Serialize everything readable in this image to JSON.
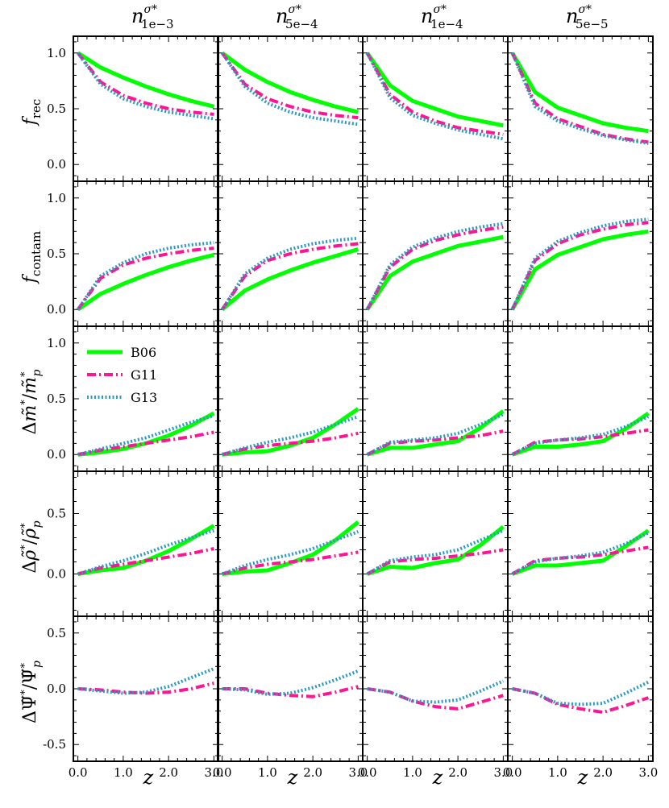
{
  "chart_data": {
    "type": "line",
    "grid": false,
    "x": [
      0.0,
      0.5,
      1.0,
      1.5,
      2.0,
      2.5,
      3.0
    ],
    "xlabel": "z",
    "xticklabels": [
      "0.0",
      "1.0",
      "2.0",
      "3.0"
    ],
    "xlim": [
      -0.1,
      3.1
    ],
    "legend": {
      "placement": "top-left of row 3, column 1",
      "entries": [
        {
          "name": "B06",
          "color": "#00ff00",
          "style": "solid"
        },
        {
          "name": "G11",
          "color": "#ff1493",
          "style": "dashdot"
        },
        {
          "name": "G13",
          "color": "#2b9ac0",
          "style": "dotted"
        }
      ]
    },
    "columns": [
      {
        "title_base": "n",
        "title_super": "σ*",
        "title_sub": "1e−3"
      },
      {
        "title_base": "n",
        "title_super": "σ*",
        "title_sub": "5e−4"
      },
      {
        "title_base": "n",
        "title_super": "σ*",
        "title_sub": "1e−4"
      },
      {
        "title_base": "n",
        "title_super": "σ*",
        "title_sub": "5e−5"
      }
    ],
    "rows": [
      {
        "ylabel": "f_rec",
        "ylim": [
          -0.15,
          1.15
        ],
        "yticks": [
          0.0,
          0.5,
          1.0
        ],
        "yticklabels": [
          "0.0",
          "0.5",
          "1.0"
        ],
        "panels": [
          {
            "series": [
              {
                "name": "B06",
                "values": [
                  1.0,
                  0.87,
                  0.78,
                  0.7,
                  0.63,
                  0.57,
                  0.52
                ]
              },
              {
                "name": "G11",
                "values": [
                  1.0,
                  0.74,
                  0.62,
                  0.55,
                  0.5,
                  0.47,
                  0.45
                ]
              },
              {
                "name": "G13",
                "values": [
                  1.0,
                  0.72,
                  0.59,
                  0.52,
                  0.47,
                  0.44,
                  0.41
                ]
              }
            ]
          },
          {
            "series": [
              {
                "name": "B06",
                "values": [
                  1.0,
                  0.85,
                  0.74,
                  0.65,
                  0.58,
                  0.52,
                  0.47
                ]
              },
              {
                "name": "G11",
                "values": [
                  1.0,
                  0.72,
                  0.59,
                  0.52,
                  0.47,
                  0.44,
                  0.42
                ]
              },
              {
                "name": "G13",
                "values": [
                  1.0,
                  0.7,
                  0.55,
                  0.47,
                  0.42,
                  0.39,
                  0.36
                ]
              }
            ]
          },
          {
            "series": [
              {
                "name": "B06",
                "values": [
                  1.0,
                  0.71,
                  0.57,
                  0.5,
                  0.43,
                  0.39,
                  0.35
                ]
              },
              {
                "name": "G11",
                "values": [
                  1.0,
                  0.63,
                  0.47,
                  0.39,
                  0.33,
                  0.3,
                  0.27
                ]
              },
              {
                "name": "G13",
                "values": [
                  1.0,
                  0.6,
                  0.44,
                  0.37,
                  0.31,
                  0.27,
                  0.23
                ]
              }
            ]
          },
          {
            "series": [
              {
                "name": "B06",
                "values": [
                  1.0,
                  0.65,
                  0.51,
                  0.44,
                  0.37,
                  0.33,
                  0.3
                ]
              },
              {
                "name": "G11",
                "values": [
                  1.0,
                  0.55,
                  0.41,
                  0.34,
                  0.27,
                  0.23,
                  0.2
                ]
              },
              {
                "name": "G13",
                "values": [
                  1.0,
                  0.52,
                  0.39,
                  0.32,
                  0.26,
                  0.22,
                  0.19
                ]
              }
            ]
          }
        ]
      },
      {
        "ylabel": "f_contam",
        "ylim": [
          -0.15,
          1.15
        ],
        "yticks": [
          0.0,
          0.5,
          1.0
        ],
        "yticklabels": [
          "0.0",
          "0.5",
          "1.0"
        ],
        "panels": [
          {
            "series": [
              {
                "name": "B06",
                "values": [
                  0.0,
                  0.14,
                  0.23,
                  0.31,
                  0.38,
                  0.44,
                  0.49
                ]
              },
              {
                "name": "G11",
                "values": [
                  0.0,
                  0.28,
                  0.4,
                  0.46,
                  0.5,
                  0.53,
                  0.55
                ]
              },
              {
                "name": "G13",
                "values": [
                  0.0,
                  0.3,
                  0.42,
                  0.5,
                  0.55,
                  0.58,
                  0.6
                ]
              }
            ]
          },
          {
            "series": [
              {
                "name": "B06",
                "values": [
                  0.0,
                  0.17,
                  0.27,
                  0.35,
                  0.42,
                  0.48,
                  0.54
                ]
              },
              {
                "name": "G11",
                "values": [
                  0.0,
                  0.3,
                  0.44,
                  0.5,
                  0.54,
                  0.57,
                  0.59
                ]
              },
              {
                "name": "G13",
                "values": [
                  0.0,
                  0.32,
                  0.46,
                  0.54,
                  0.59,
                  0.62,
                  0.64
                ]
              }
            ]
          },
          {
            "series": [
              {
                "name": "B06",
                "values": [
                  0.0,
                  0.3,
                  0.43,
                  0.5,
                  0.57,
                  0.61,
                  0.65
                ]
              },
              {
                "name": "G11",
                "values": [
                  0.0,
                  0.38,
                  0.54,
                  0.62,
                  0.67,
                  0.71,
                  0.74
                ]
              },
              {
                "name": "G13",
                "values": [
                  0.0,
                  0.4,
                  0.56,
                  0.64,
                  0.7,
                  0.74,
                  0.77
                ]
              }
            ]
          },
          {
            "series": [
              {
                "name": "B06",
                "values": [
                  0.0,
                  0.36,
                  0.49,
                  0.56,
                  0.63,
                  0.67,
                  0.7
                ]
              },
              {
                "name": "G11",
                "values": [
                  0.0,
                  0.44,
                  0.59,
                  0.67,
                  0.72,
                  0.76,
                  0.78
                ]
              },
              {
                "name": "G13",
                "values": [
                  0.0,
                  0.46,
                  0.61,
                  0.69,
                  0.75,
                  0.79,
                  0.81
                ]
              }
            ]
          }
        ]
      },
      {
        "ylabel": "Δm̃*/m̃*_p",
        "ylim": [
          -0.15,
          1.15
        ],
        "yticks": [
          0.0,
          0.5,
          1.0
        ],
        "yticklabels": [
          "0.0",
          "0.5",
          "1.0"
        ],
        "panels": [
          {
            "series": [
              {
                "name": "B06",
                "values": [
                  0.0,
                  0.02,
                  0.05,
                  0.1,
                  0.17,
                  0.26,
                  0.37
                ]
              },
              {
                "name": "G11",
                "values": [
                  0.0,
                  0.04,
                  0.07,
                  0.1,
                  0.13,
                  0.16,
                  0.2
                ]
              },
              {
                "name": "G13",
                "values": [
                  0.0,
                  0.05,
                  0.1,
                  0.15,
                  0.22,
                  0.29,
                  0.35
                ]
              }
            ]
          },
          {
            "series": [
              {
                "name": "B06",
                "values": [
                  0.0,
                  0.02,
                  0.03,
                  0.08,
                  0.15,
                  0.27,
                  0.41
                ]
              },
              {
                "name": "G11",
                "values": [
                  0.0,
                  0.05,
                  0.08,
                  0.1,
                  0.12,
                  0.15,
                  0.19
                ]
              },
              {
                "name": "G13",
                "values": [
                  0.0,
                  0.06,
                  0.11,
                  0.15,
                  0.2,
                  0.27,
                  0.34
                ]
              }
            ]
          },
          {
            "series": [
              {
                "name": "B06",
                "values": [
                  0.0,
                  0.06,
                  0.06,
                  0.09,
                  0.12,
                  0.24,
                  0.39
                ]
              },
              {
                "name": "G11",
                "values": [
                  0.0,
                  0.1,
                  0.12,
                  0.13,
                  0.15,
                  0.17,
                  0.21
                ]
              },
              {
                "name": "G13",
                "values": [
                  0.0,
                  0.11,
                  0.13,
                  0.15,
                  0.19,
                  0.27,
                  0.36
                ]
              }
            ]
          },
          {
            "series": [
              {
                "name": "B06",
                "values": [
                  0.0,
                  0.07,
                  0.07,
                  0.09,
                  0.12,
                  0.23,
                  0.37
                ]
              },
              {
                "name": "G11",
                "values": [
                  0.0,
                  0.11,
                  0.13,
                  0.14,
                  0.16,
                  0.19,
                  0.22
                ]
              },
              {
                "name": "G13",
                "values": [
                  0.0,
                  0.1,
                  0.13,
                  0.15,
                  0.18,
                  0.25,
                  0.34
                ]
              }
            ]
          }
        ]
      },
      {
        "ylabel": "Δρ̃*/ρ̃*_p",
        "ylim": [
          -0.35,
          0.85
        ],
        "yticks": [
          0.0,
          0.5
        ],
        "yticklabels": [
          "0.0",
          "0.5"
        ],
        "panels": [
          {
            "series": [
              {
                "name": "B06",
                "values": [
                  0.0,
                  0.03,
                  0.05,
                  0.11,
                  0.19,
                  0.29,
                  0.4
                ]
              },
              {
                "name": "G11",
                "values": [
                  0.0,
                  0.05,
                  0.08,
                  0.11,
                  0.14,
                  0.17,
                  0.21
                ]
              },
              {
                "name": "G13",
                "values": [
                  0.0,
                  0.06,
                  0.11,
                  0.17,
                  0.24,
                  0.3,
                  0.36
                ]
              }
            ]
          },
          {
            "series": [
              {
                "name": "B06",
                "values": [
                  0.0,
                  0.02,
                  0.03,
                  0.09,
                  0.16,
                  0.28,
                  0.43
                ]
              },
              {
                "name": "G11",
                "values": [
                  0.0,
                  0.05,
                  0.08,
                  0.1,
                  0.12,
                  0.15,
                  0.18
                ]
              },
              {
                "name": "G13",
                "values": [
                  0.0,
                  0.07,
                  0.12,
                  0.16,
                  0.21,
                  0.28,
                  0.35
                ]
              }
            ]
          },
          {
            "series": [
              {
                "name": "B06",
                "values": [
                  0.0,
                  0.06,
                  0.05,
                  0.09,
                  0.12,
                  0.24,
                  0.39
                ]
              },
              {
                "name": "G11",
                "values": [
                  0.0,
                  0.1,
                  0.12,
                  0.13,
                  0.15,
                  0.17,
                  0.2
                ]
              },
              {
                "name": "G13",
                "values": [
                  0.0,
                  0.11,
                  0.14,
                  0.16,
                  0.2,
                  0.28,
                  0.36
                ]
              }
            ]
          },
          {
            "series": [
              {
                "name": "B06",
                "values": [
                  0.0,
                  0.07,
                  0.07,
                  0.09,
                  0.11,
                  0.23,
                  0.36
                ]
              },
              {
                "name": "G11",
                "values": [
                  0.0,
                  0.11,
                  0.13,
                  0.14,
                  0.16,
                  0.19,
                  0.22
                ]
              },
              {
                "name": "G13",
                "values": [
                  0.0,
                  0.1,
                  0.13,
                  0.15,
                  0.18,
                  0.25,
                  0.34
                ]
              }
            ]
          }
        ]
      },
      {
        "ylabel": "ΔΨ̃*/Ψ̃*_p",
        "ylim": [
          -0.65,
          0.65
        ],
        "yticks": [
          -0.5,
          0.0,
          0.5
        ],
        "yticklabels": [
          "-0.5",
          "0.0",
          "0.5"
        ],
        "panels": [
          {
            "series": [
              {
                "name": "G11",
                "values": [
                  0.0,
                  -0.01,
                  -0.03,
                  -0.04,
                  -0.03,
                  0.0,
                  0.05
                ]
              },
              {
                "name": "G13",
                "values": [
                  0.0,
                  -0.02,
                  -0.04,
                  -0.03,
                  0.02,
                  0.1,
                  0.18
                ]
              }
            ]
          },
          {
            "series": [
              {
                "name": "G11",
                "values": [
                  0.0,
                  0.0,
                  -0.04,
                  -0.06,
                  -0.07,
                  -0.03,
                  0.02
                ]
              },
              {
                "name": "G13",
                "values": [
                  0.0,
                  -0.01,
                  -0.05,
                  -0.04,
                  0.01,
                  0.08,
                  0.16
                ]
              }
            ]
          },
          {
            "series": [
              {
                "name": "G11",
                "values": [
                  0.0,
                  -0.03,
                  -0.11,
                  -0.16,
                  -0.18,
                  -0.12,
                  -0.06
                ]
              },
              {
                "name": "G13",
                "values": [
                  0.0,
                  -0.03,
                  -0.11,
                  -0.12,
                  -0.1,
                  -0.02,
                  0.07
                ]
              }
            ]
          },
          {
            "series": [
              {
                "name": "G11",
                "values": [
                  0.0,
                  -0.04,
                  -0.14,
                  -0.18,
                  -0.21,
                  -0.15,
                  -0.08
                ]
              },
              {
                "name": "G13",
                "values": [
                  0.0,
                  -0.04,
                  -0.13,
                  -0.14,
                  -0.13,
                  -0.04,
                  0.06
                ]
              }
            ]
          }
        ]
      }
    ]
  }
}
